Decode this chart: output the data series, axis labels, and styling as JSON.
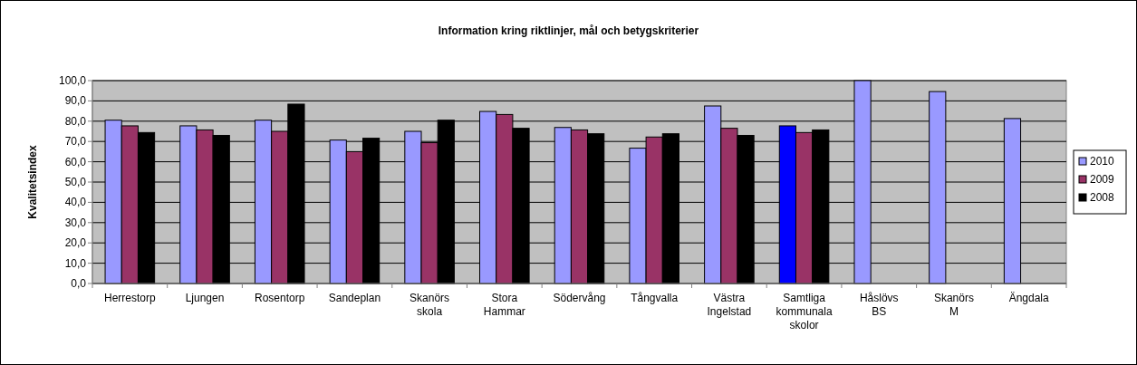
{
  "chart_data": {
    "type": "bar",
    "title": "Information kring riktlinjer, mål och betygskriterier",
    "ylabel": "Kvalitetsindex",
    "categories": [
      "Herrestorp",
      "Ljungen",
      "Rosentorp",
      "Sandeplan",
      "Skanörs skola",
      "Stora Hammar",
      "Södervång",
      "Tångvalla",
      "Västra Ingelstad",
      "Samtliga kommunala skolor",
      "Håslövs BS",
      "Skanörs M",
      "Ängdala"
    ],
    "series": [
      {
        "name": "2010",
        "color": "#9999ff",
        "colors": [
          "#9999ff",
          "#9999ff",
          "#9999ff",
          "#9999ff",
          "#9999ff",
          "#9999ff",
          "#9999ff",
          "#9999ff",
          "#9999ff",
          "#0000ff",
          "#9999ff",
          "#9999ff",
          "#9999ff"
        ],
        "values": [
          80.5,
          77.7,
          80.5,
          70.7,
          75.0,
          84.8,
          76.9,
          66.7,
          87.5,
          77.7,
          100.0,
          94.6,
          81.3
        ]
      },
      {
        "name": "2009",
        "color": "#993366",
        "values": [
          77.7,
          75.7,
          75.0,
          65.0,
          69.4,
          83.3,
          75.7,
          72.2,
          76.5,
          74.4,
          null,
          null,
          null
        ]
      },
      {
        "name": "2008",
        "color": "#000000",
        "values": [
          74.4,
          73.0,
          88.4,
          71.6,
          80.5,
          76.5,
          73.8,
          73.8,
          73.0,
          75.7,
          null,
          null,
          null
        ]
      }
    ],
    "ylim": [
      0,
      100
    ],
    "yticks": [
      {
        "value": 0,
        "label": "0,0"
      },
      {
        "value": 10,
        "label": "10,0"
      },
      {
        "value": 20,
        "label": "20,0"
      },
      {
        "value": 30,
        "label": "30,0"
      },
      {
        "value": 40,
        "label": "40,0"
      },
      {
        "value": 50,
        "label": "50,0"
      },
      {
        "value": 60,
        "label": "60,0"
      },
      {
        "value": 70,
        "label": "70,0"
      },
      {
        "value": 80,
        "label": "80,0"
      },
      {
        "value": 90,
        "label": "90,0"
      },
      {
        "value": 100,
        "label": "100,0"
      }
    ],
    "grid": "y",
    "legend": "right"
  }
}
